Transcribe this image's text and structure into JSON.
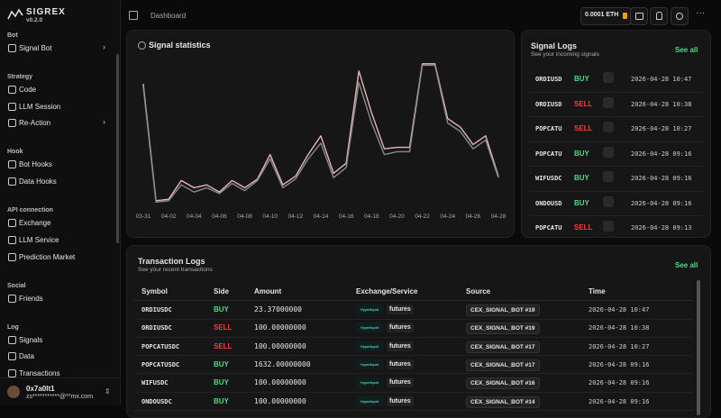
{
  "sidebar": {
    "brand": "SIGREX",
    "version": "v0.2.0",
    "sections": [
      {
        "title": "Bot",
        "items": [
          {
            "label": "Signal Bot",
            "expandable": true
          }
        ]
      },
      {
        "title": "Strategy",
        "items": [
          {
            "label": "Code"
          },
          {
            "label": "LLM Session"
          },
          {
            "label": "Re-Action",
            "expandable": true
          }
        ]
      },
      {
        "title": "Hook",
        "items": [
          {
            "label": "Bot Hooks"
          },
          {
            "label": "Data Hooks"
          }
        ]
      },
      {
        "title": "API connection",
        "items": [
          {
            "label": "Exchange"
          },
          {
            "label": "LLM Service"
          },
          {
            "label": "Prediction Market"
          }
        ]
      },
      {
        "title": "Social",
        "items": [
          {
            "label": "Friends"
          }
        ]
      },
      {
        "title": "Log",
        "items": [
          {
            "label": "Signals"
          },
          {
            "label": "Data"
          },
          {
            "label": "Transactions"
          }
        ]
      }
    ],
    "user": {
      "name": "0x7a0lt1",
      "email": "zs***********@**mx.com"
    }
  },
  "topbar": {
    "breadcrumb": "Dashboard",
    "balance": "0.0001 ETH"
  },
  "side_colors": {
    "BUY": "#4ade80",
    "SELL": "#ff3b3b"
  },
  "chart_data": {
    "type": "line",
    "title": "Signal statistics",
    "categories": [
      "03-31",
      null,
      "04-02",
      null,
      "04-04",
      null,
      "04-06",
      null,
      "04-08",
      null,
      "04-10",
      null,
      "04-12",
      null,
      "04-14",
      null,
      "04-16",
      null,
      "04-18",
      null,
      "04-20",
      null,
      "04-22",
      null,
      "04-24",
      null,
      "04-26",
      null,
      "04-28"
    ],
    "series": [
      {
        "color": "#e8b4bc",
        "values": [
          83,
          2,
          3,
          16,
          11,
          13,
          8,
          16,
          11,
          17,
          34,
          13,
          19,
          34,
          47,
          21,
          28,
          92,
          63,
          38,
          39,
          39,
          97,
          97,
          59,
          53,
          41,
          47,
          19
        ]
      },
      {
        "color": "#8a8a8a",
        "values": [
          81,
          1,
          2,
          13,
          8,
          11,
          7,
          14,
          9,
          16,
          31,
          11,
          17,
          31,
          42,
          18,
          25,
          84,
          56,
          34,
          36,
          36,
          96,
          96,
          56,
          50,
          38,
          44,
          18
        ]
      }
    ],
    "ylim": [
      0,
      100
    ]
  },
  "signal_logs": {
    "title": "Signal Logs",
    "subtitle": "See your incoming signals",
    "see_all": "See all",
    "rows": [
      [
        "ORDIUSD",
        "BUY",
        "2026-04-28 10:47"
      ],
      [
        "ORDIUSD",
        "SELL",
        "2026-04-28 10:38"
      ],
      [
        "POPCATU",
        "SELL",
        "2026-04-28 10:27"
      ],
      [
        "POPCATU",
        "BUY",
        "2026-04-28 09:16"
      ],
      [
        "WIFUSDC",
        "BUY",
        "2026-04-28 09:16"
      ],
      [
        "ONDOUSD",
        "BUY",
        "2026-04-28 09:16"
      ],
      [
        "POPCATU",
        "SELL",
        "2026-04-28 09:13"
      ]
    ]
  },
  "transaction_logs": {
    "title": "Transaction Logs",
    "subtitle": "See your recent transactions",
    "see_all": "See all",
    "columns": [
      "Symbol",
      "Side",
      "Amount",
      "Exchange/Service",
      "Source",
      "Time"
    ],
    "rows": [
      [
        "ORDIUSDC",
        "BUY",
        "23.37000000",
        "Hyperliquid",
        "futures",
        "CEX_SIGNAL_BOT #19",
        "2026-04-28 10:47"
      ],
      [
        "ORDIUSDC",
        "SELL",
        "100.00000000",
        "Hyperliquid",
        "futures",
        "CEX_SIGNAL_BOT #19",
        "2026-04-28 10:38"
      ],
      [
        "POPCATUSDC",
        "SELL",
        "100.00000000",
        "Hyperliquid",
        "futures",
        "CEX_SIGNAL_BOT #17",
        "2026-04-28 10:27"
      ],
      [
        "POPCATUSDC",
        "BUY",
        "1632.00000000",
        "Hyperliquid",
        "futures",
        "CEX_SIGNAL_BOT #17",
        "2026-04-28 09:16"
      ],
      [
        "WIFUSDC",
        "BUY",
        "100.00000000",
        "Hyperliquid",
        "futures",
        "CEX_SIGNAL_BOT #16",
        "2026-04-28 09:16"
      ],
      [
        "ONDOUSDC",
        "BUY",
        "100.00000000",
        "Hyperliquid",
        "futures",
        "CEX_SIGNAL_BOT #14",
        "2026-04-28 09:16"
      ]
    ]
  }
}
